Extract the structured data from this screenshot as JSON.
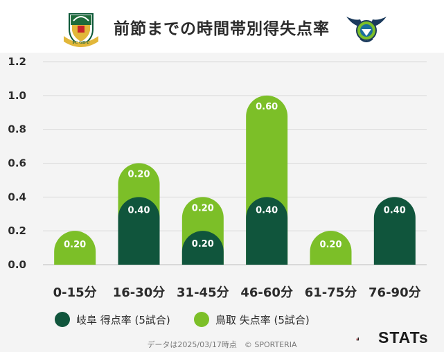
{
  "header": {
    "title": "前節までの時間帯別得失点率",
    "home_logo_text": "FC GIFU",
    "away_logo_icon": "gainare-tottori-emblem"
  },
  "chart_data": {
    "type": "bar",
    "stacked": true,
    "categories": [
      "0-15分",
      "16-30分",
      "31-45分",
      "46-60分",
      "61-75分",
      "76-90分"
    ],
    "series": [
      {
        "name": "岐阜 得点率 (5試合)",
        "color": "#10553c",
        "values": [
          0,
          0.4,
          0.2,
          0.4,
          0,
          0.4
        ],
        "labels": [
          "",
          "0.40",
          "0.20",
          "0.40",
          "",
          "0.40"
        ]
      },
      {
        "name": "鳥取 失点率 (5試合)",
        "color": "#7cbf28",
        "values": [
          0.2,
          0.2,
          0.2,
          0.6,
          0.2,
          0
        ],
        "labels": [
          "0.20",
          "0.20",
          "0.20",
          "0.60",
          "0.20",
          ""
        ]
      }
    ],
    "ylim": [
      0,
      1.2
    ],
    "yticks": [
      "0.0",
      "0.2",
      "0.4",
      "0.6",
      "0.8",
      "1.0",
      "1.2"
    ],
    "grid": true,
    "legend_position": "bottom"
  },
  "footer": {
    "note": "データは2025/03/17時点　© SPORTERIA",
    "brand": "STATs"
  }
}
